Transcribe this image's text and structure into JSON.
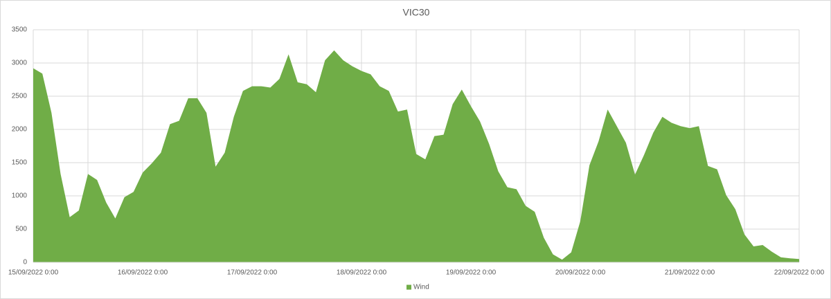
{
  "chart_data": {
    "type": "area",
    "title": "VIC30",
    "categories": [
      "15/09/2022 0:00",
      null,
      null,
      null,
      null,
      null,
      null,
      null,
      null,
      null,
      null,
      null,
      "16/09/2022 0:00",
      null,
      null,
      null,
      null,
      null,
      null,
      null,
      null,
      null,
      null,
      null,
      "17/09/2022 0:00",
      null,
      null,
      null,
      null,
      null,
      null,
      null,
      null,
      null,
      null,
      null,
      "18/09/2022 0:00",
      null,
      null,
      null,
      null,
      null,
      null,
      null,
      null,
      null,
      null,
      null,
      "19/09/2022 0:00",
      null,
      null,
      null,
      null,
      null,
      null,
      null,
      null,
      null,
      null,
      null,
      "20/09/2022 0:00",
      null,
      null,
      null,
      null,
      null,
      null,
      null,
      null,
      null,
      null,
      null,
      "21/09/2022 0:00",
      null,
      null,
      null,
      null,
      null,
      null,
      null,
      null,
      null,
      null,
      null,
      "22/09/2022 0:00"
    ],
    "series": [
      {
        "name": "Wind",
        "color": "#70ad47",
        "values": [
          2920,
          2840,
          2250,
          1330,
          680,
          780,
          1330,
          1240,
          900,
          660,
          980,
          1060,
          1350,
          1490,
          1650,
          2080,
          2130,
          2470,
          2470,
          2250,
          1440,
          1650,
          2190,
          2580,
          2650,
          2650,
          2630,
          2760,
          3130,
          2710,
          2680,
          2560,
          3040,
          3190,
          3040,
          2950,
          2880,
          2830,
          2650,
          2580,
          2270,
          2300,
          1630,
          1550,
          1900,
          1920,
          2380,
          2600,
          2350,
          2120,
          1780,
          1370,
          1130,
          1100,
          850,
          760,
          370,
          120,
          40,
          150,
          620,
          1460,
          1820,
          2300,
          2050,
          1800,
          1320,
          1620,
          1950,
          2190,
          2100,
          2050,
          2020,
          2050,
          1450,
          1400,
          1010,
          800,
          420,
          240,
          260,
          160,
          75,
          60,
          50
        ]
      }
    ],
    "ylim": [
      0,
      3500
    ],
    "yticks": [
      0,
      500,
      1000,
      1500,
      2000,
      2500,
      3000,
      3500
    ],
    "grid": true,
    "legend": "bottom"
  }
}
